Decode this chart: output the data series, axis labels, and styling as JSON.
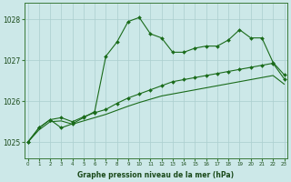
{
  "title": "Graphe pression niveau de la mer (hPa)",
  "bg_color": "#cce8e8",
  "grid_color": "#aacece",
  "line_color": "#1a6b1a",
  "x_labels": [
    "0",
    "1",
    "2",
    "3",
    "4",
    "5",
    "6",
    "7",
    "8",
    "9",
    "10",
    "11",
    "12",
    "13",
    "14",
    "15",
    "16",
    "17",
    "18",
    "19",
    "20",
    "21",
    "22",
    "23"
  ],
  "ylim": [
    1024.6,
    1028.4
  ],
  "yticks": [
    1025,
    1026,
    1027,
    1028
  ],
  "series1": [
    1025.0,
    1025.35,
    1025.55,
    1025.35,
    1025.45,
    1025.6,
    1025.75,
    1027.1,
    1027.45,
    1027.95,
    1028.05,
    1027.65,
    1027.55,
    1027.2,
    1027.2,
    1027.3,
    1027.35,
    1027.35,
    1027.5,
    1027.75,
    1027.55,
    1027.55,
    1026.95,
    1026.65
  ],
  "series2": [
    1025.0,
    1025.35,
    1025.55,
    1025.6,
    1025.5,
    1025.62,
    1025.72,
    1025.8,
    1025.95,
    1026.08,
    1026.18,
    1026.28,
    1026.38,
    1026.48,
    1026.53,
    1026.58,
    1026.63,
    1026.68,
    1026.73,
    1026.78,
    1026.83,
    1026.88,
    1026.93,
    1026.55
  ],
  "series3": [
    1025.0,
    1025.3,
    1025.5,
    1025.52,
    1025.44,
    1025.52,
    1025.6,
    1025.68,
    1025.78,
    1025.88,
    1025.97,
    1026.05,
    1026.13,
    1026.18,
    1026.23,
    1026.28,
    1026.33,
    1026.38,
    1026.43,
    1026.48,
    1026.53,
    1026.58,
    1026.63,
    1026.42
  ],
  "s1_markers": true,
  "s2_markers": true,
  "s3_markers": false
}
